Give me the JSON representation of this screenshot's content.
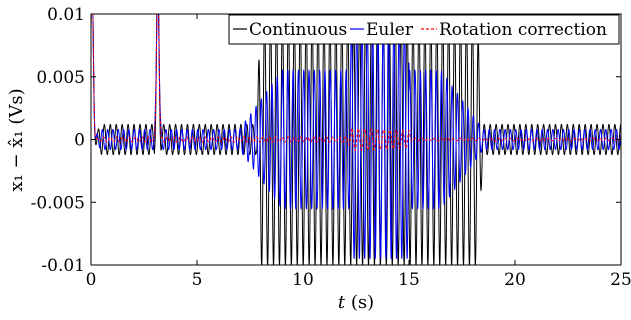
{
  "chart_data": {
    "type": "line",
    "title": "",
    "xlabel_var": "t",
    "xlabel_unit": " (s)",
    "ylabel": "x₁ − x̂₁ (Vs)",
    "xlim": [
      0,
      25
    ],
    "ylim": [
      -0.01,
      0.01
    ],
    "x_ticks": [
      0,
      5,
      10,
      15,
      20,
      25
    ],
    "x_tick_labels": [
      "0",
      "5",
      "10",
      "15",
      "20",
      "25"
    ],
    "y_ticks": [
      -0.01,
      -0.005,
      0,
      0.005,
      0.01
    ],
    "y_tick_labels": [
      "-0.01",
      "-0.005",
      "0",
      "0.005",
      "0.01"
    ],
    "grid": false,
    "legend_position": "top-right",
    "series": [
      {
        "name": "Continuous",
        "color": "#000000",
        "style": "solid",
        "envelope": [
          [
            0,
            0
          ],
          [
            0.5,
            0.0012
          ],
          [
            7.8,
            0.0012
          ],
          [
            8.0,
            0.01
          ],
          [
            18.2,
            0.01
          ],
          [
            18.5,
            0.0012
          ],
          [
            25,
            0.0012
          ]
        ],
        "period": 0.28
      },
      {
        "name": "Euler",
        "color": "#0000ff",
        "style": "solid",
        "envelope": [
          [
            0,
            0
          ],
          [
            0.5,
            0.0008
          ],
          [
            7.0,
            0.0008
          ],
          [
            9.0,
            0.0055
          ],
          [
            12.2,
            0.0055
          ],
          [
            12.2,
            0.0095
          ],
          [
            15.0,
            0.0095
          ],
          [
            15.0,
            0.0055
          ],
          [
            16.5,
            0.0055
          ],
          [
            18.5,
            0.0008
          ],
          [
            25,
            0.0008
          ]
        ],
        "period": 0.25
      },
      {
        "name": "Rotation correction",
        "color": "#ff0000",
        "style": "dashed",
        "envelope": [
          [
            0,
            0
          ],
          [
            0.7,
            0.0002
          ],
          [
            12.1,
            0.0002
          ],
          [
            12.3,
            0.0009
          ],
          [
            15.0,
            0.0007
          ],
          [
            15.1,
            0.0001
          ],
          [
            25,
            0.0001
          ]
        ],
        "period": 0.3
      }
    ],
    "transients": [
      {
        "series": "Continuous",
        "t": 0.05,
        "peak": 0.01
      },
      {
        "series": "Continuous",
        "t": 3.15,
        "peak": 0.01
      },
      {
        "series": "Euler",
        "t": 0.05,
        "peak": 0.01
      },
      {
        "series": "Euler",
        "t": 3.15,
        "peak": 0.01
      },
      {
        "series": "Rotation correction",
        "t": 0.05,
        "peak": 0.01
      },
      {
        "series": "Rotation correction",
        "t": 3.15,
        "peak": 0.01
      }
    ]
  }
}
